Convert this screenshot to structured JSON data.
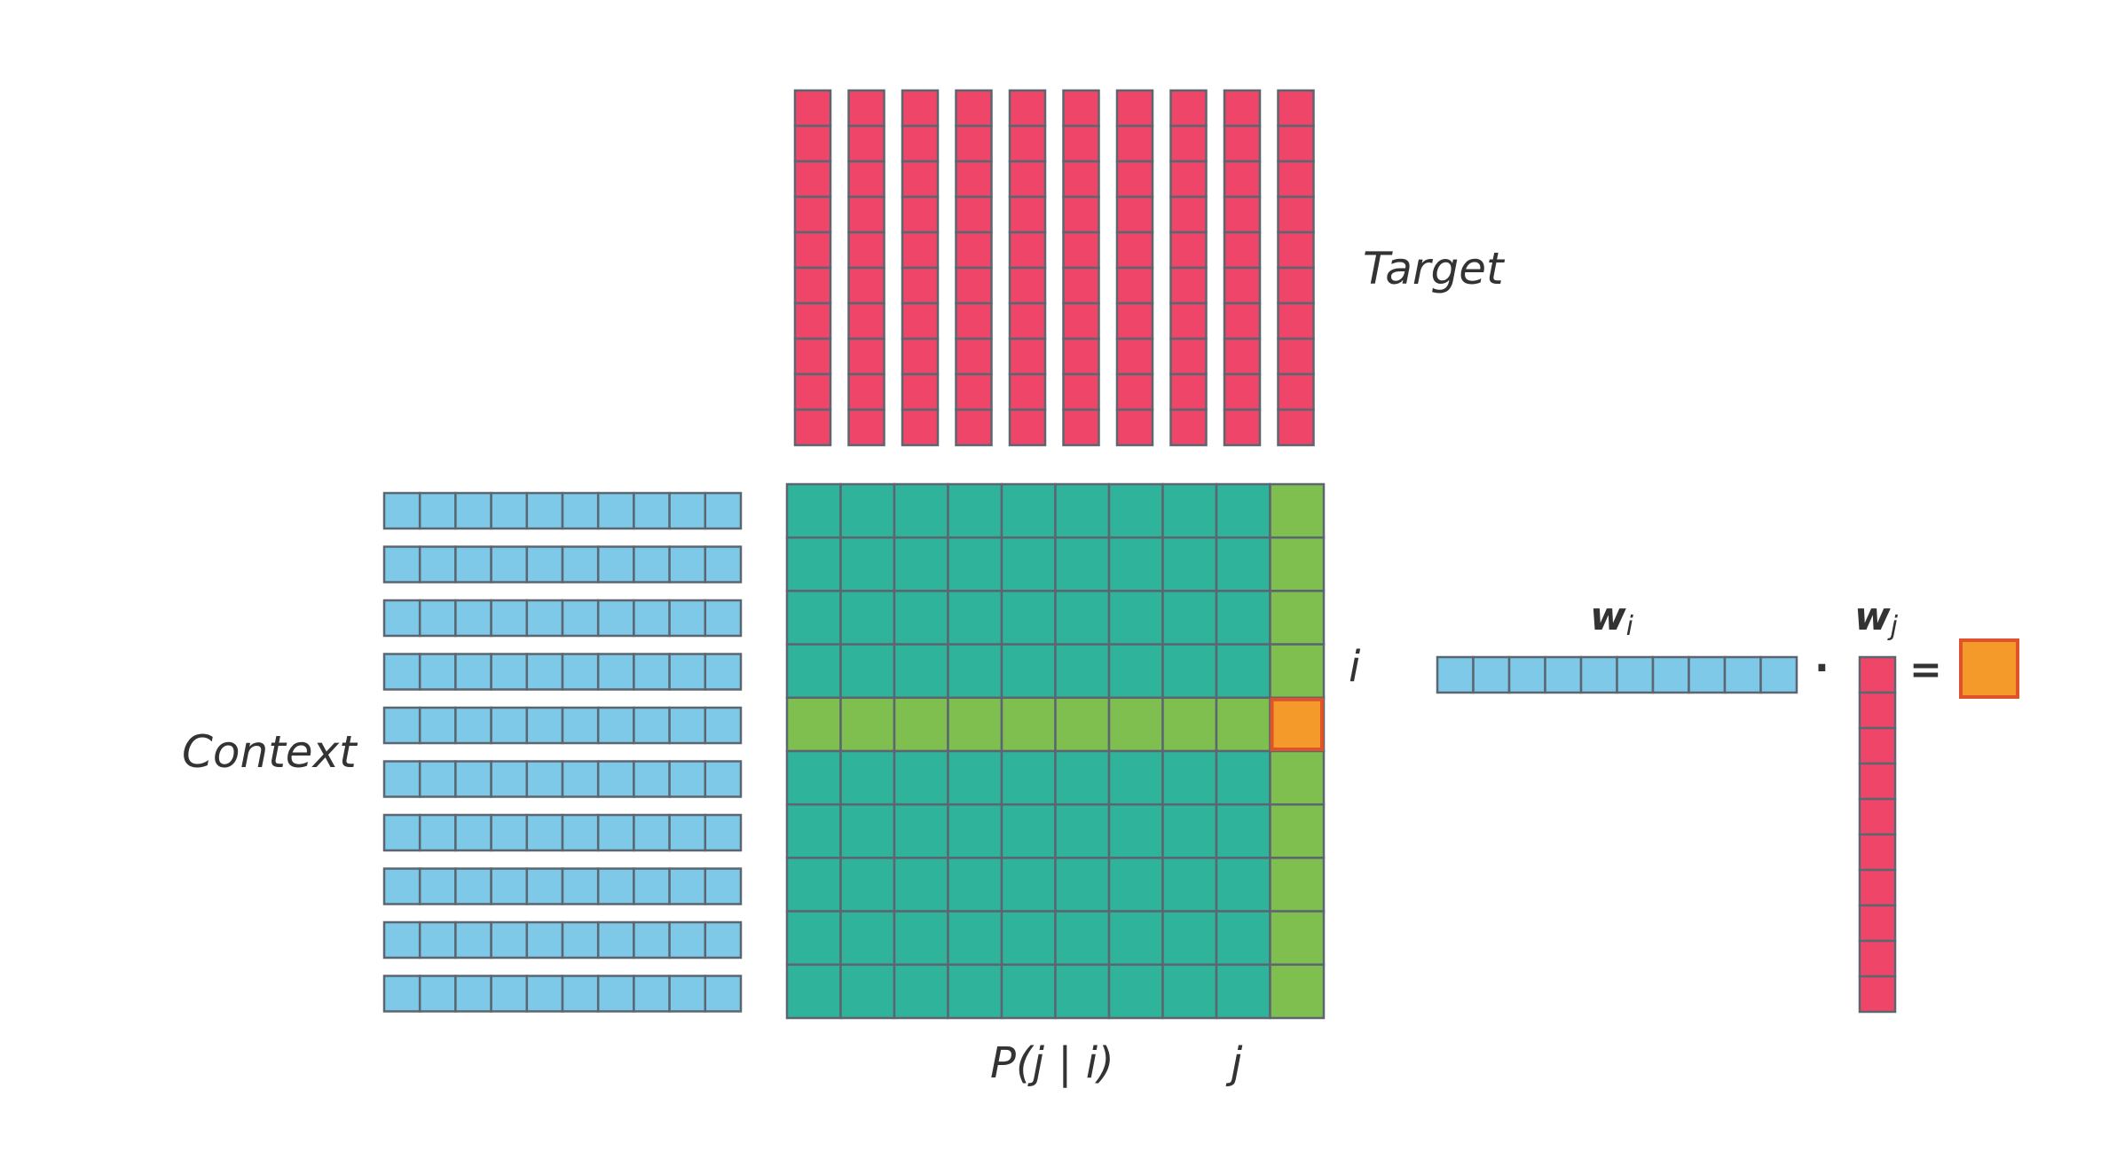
{
  "labels": {
    "target": "Target",
    "context": "Context",
    "row_index": "i",
    "col_index": "j",
    "probability": "P(j | i)",
    "wi_base": "w",
    "wi_sub": "i",
    "wj_base": "w",
    "wj_sub": "j",
    "dot": "·",
    "equals": "="
  },
  "structure": {
    "vector_length": 10,
    "target_vector_count": 10,
    "context_vector_count": 10,
    "matrix_rows": 10,
    "matrix_cols": 10,
    "highlight_row": 4,
    "highlight_col": 9
  },
  "colors": {
    "target": "#ef4569",
    "context": "#7ec8e8",
    "matrix": "#2fb39a",
    "highlight": "#7fbf50",
    "result": "#f39a2b",
    "result_border": "#e0522a",
    "cell_border": "#5b6670"
  }
}
